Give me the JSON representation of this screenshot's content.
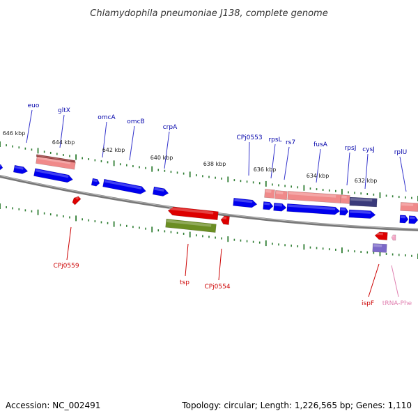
{
  "title": "Chlamydophila pneumoniae J138, complete genome",
  "footer": {
    "accession": "Accession: NC_002491",
    "summary": "Topology: circular; Length: 1,226,565 bp; Genes: 1,110"
  },
  "colors": {
    "forward_gene": "#0000ee",
    "reverse_gene": "#dd0000",
    "rrna_pink": "#f08a8a",
    "navy": "#3a3a7a",
    "olive": "#6b8e23",
    "lavender": "#7b68c8",
    "trna": "#f4a6c6",
    "tick": "#2e7d32",
    "backbone": "#777777"
  },
  "kbp_ticks": [
    "646 kbp",
    "644 kbp",
    "642 kbp",
    "640 kbp",
    "638 kbp",
    "636 kbp",
    "634 kbp",
    "632 kbp"
  ],
  "top_labels": [
    "euo",
    "gltX",
    "omcA",
    "omcB",
    "crpA",
    "CPj0553",
    "rpsL",
    "rs7",
    "fusA",
    "rpsJ",
    "cysJ",
    "rplU"
  ],
  "bottom_labels": [
    "CPj0559",
    "tsp",
    "CPj0554",
    "ispF",
    "tRNA-Phe"
  ]
}
